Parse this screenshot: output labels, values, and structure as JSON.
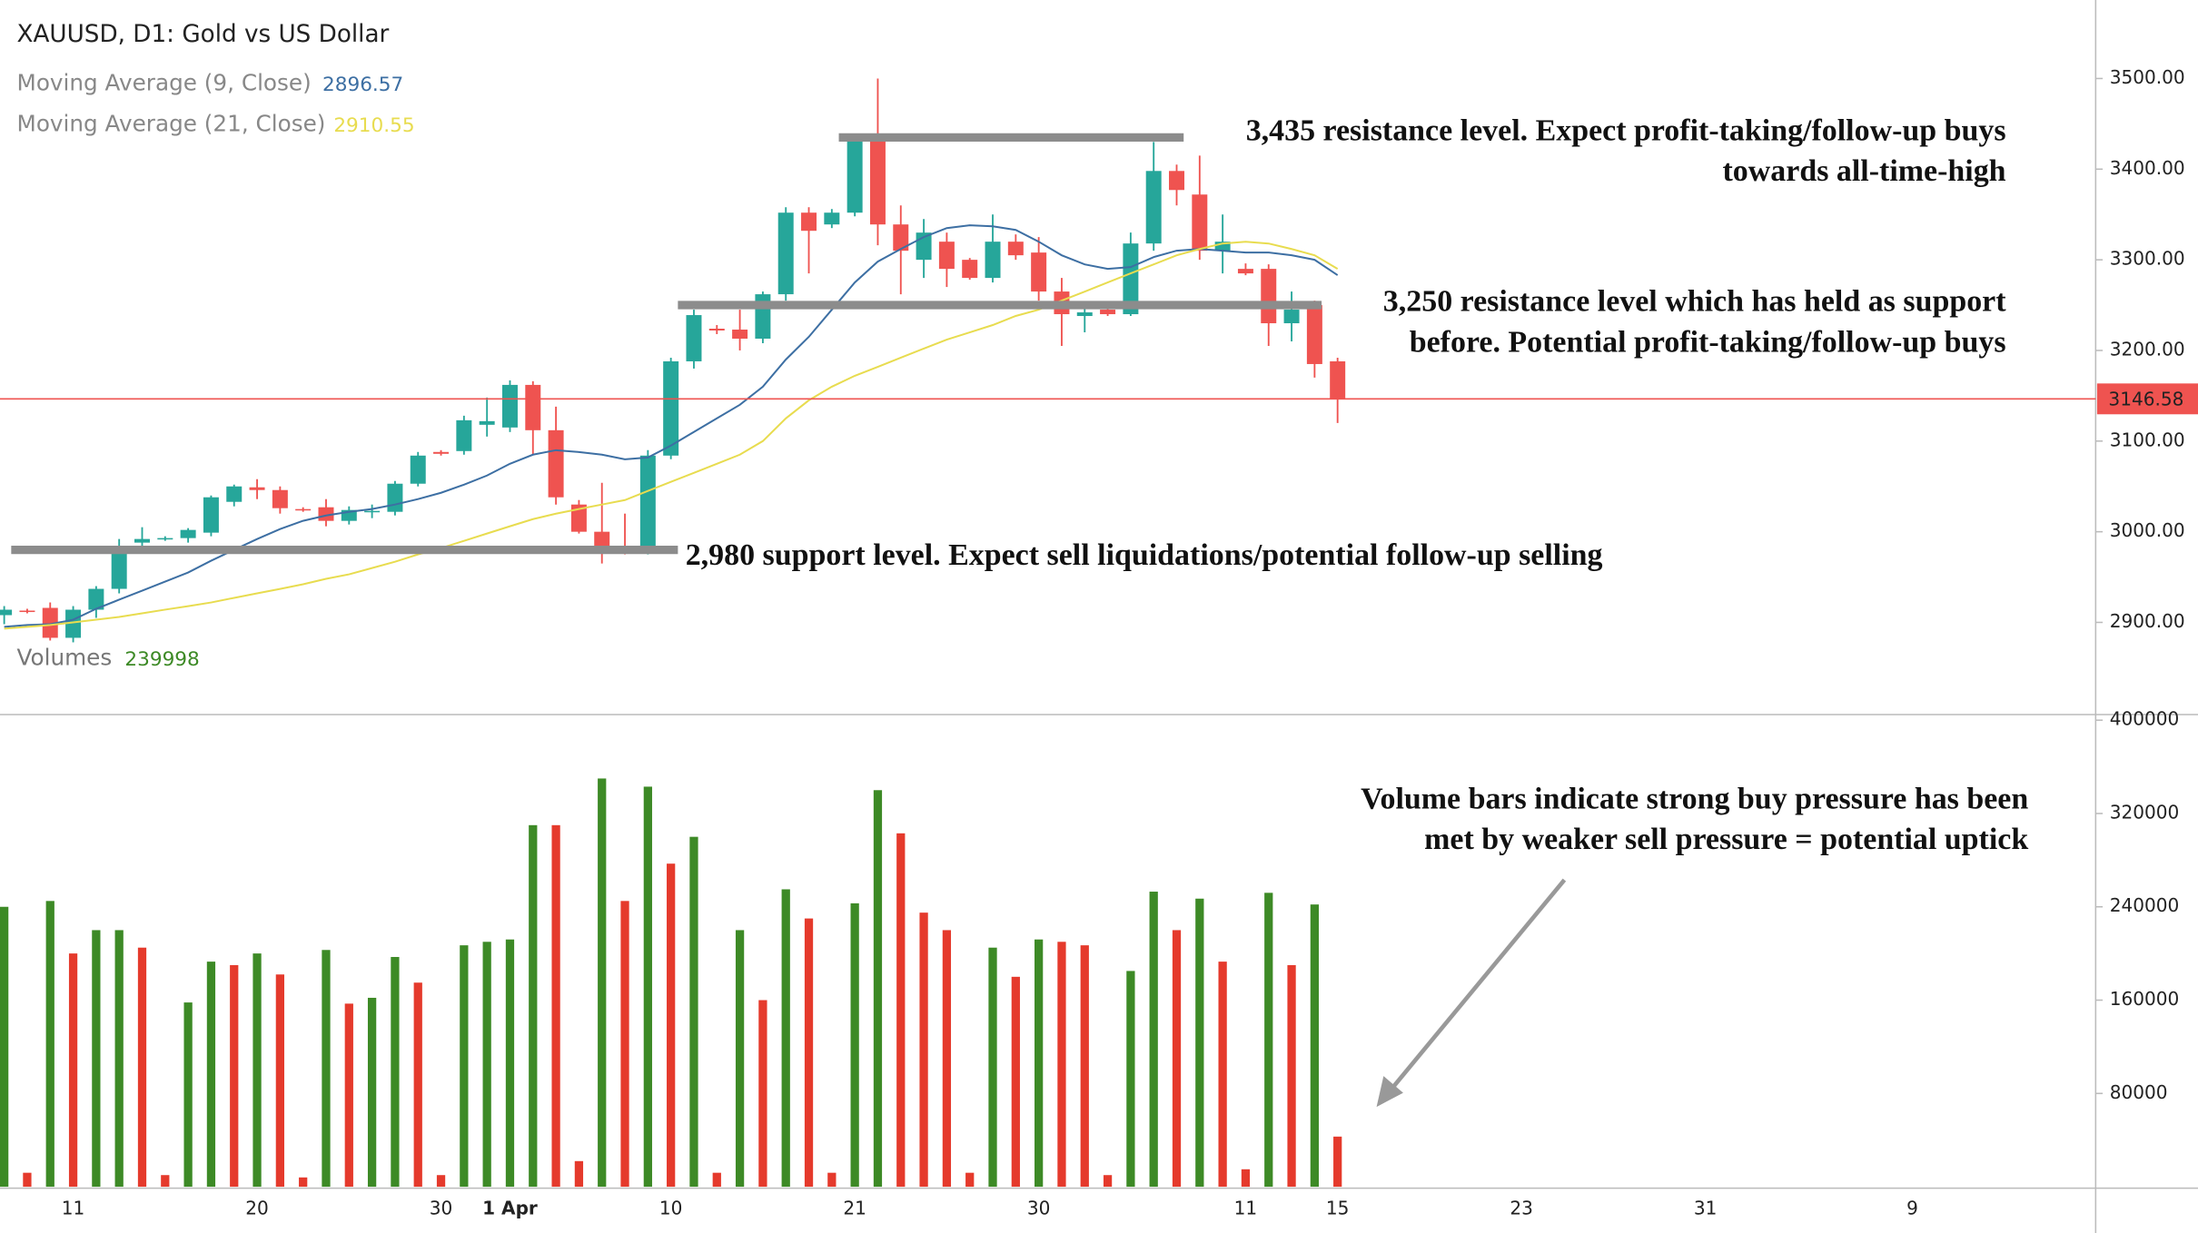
{
  "chart_data": {
    "type": "candlestick",
    "title": "XAUUSD, D1: Gold vs US Dollar",
    "categories": [
      null,
      null,
      null,
      "11",
      null,
      null,
      null,
      null,
      null,
      null,
      null,
      "20",
      null,
      null,
      null,
      null,
      null,
      null,
      null,
      "30",
      null,
      null,
      "1 Apr",
      null,
      null,
      null,
      null,
      null,
      null,
      "10",
      null,
      null,
      null,
      null,
      null,
      null,
      null,
      "21",
      null,
      null,
      null,
      null,
      null,
      null,
      null,
      "30",
      null,
      null,
      null,
      null,
      null,
      null,
      null,
      null,
      "11",
      null,
      null,
      null,
      "15",
      null,
      null,
      null,
      null,
      null,
      null,
      null,
      "23",
      null,
      null,
      null,
      null,
      null,
      null,
      null,
      "31",
      null,
      null,
      null,
      null,
      null,
      null,
      null,
      null,
      "9",
      null,
      null,
      null,
      null,
      null,
      null,
      null
    ],
    "open": [
      2908,
      2913,
      2916,
      2883,
      2914,
      2937,
      2988,
      2992,
      2993,
      2999,
      3033,
      3049,
      3046,
      3025,
      3027,
      3012,
      3022,
      3022,
      3053,
      3088,
      3089,
      3118,
      3115,
      3162,
      3112,
      3030,
      3000,
      2984,
      2979,
      3084,
      3188,
      3224,
      3223,
      3213,
      3262,
      3352,
      3339,
      3352,
      3432,
      3339,
      3300,
      3320,
      3300,
      3280,
      3320,
      3308,
      3265,
      3238,
      3245,
      3240,
      3318,
      3398,
      3372,
      3310,
      3290,
      3290,
      3230,
      3250,
      3188,
      null,
      null,
      null,
      null,
      null,
      null,
      null,
      null,
      null,
      null,
      null,
      null,
      null,
      null,
      null,
      null,
      null,
      null,
      null,
      null,
      null,
      null,
      null,
      null,
      null,
      null,
      null,
      null,
      null,
      null,
      null,
      null
    ],
    "high": [
      2918,
      2915,
      2922,
      2918,
      2940,
      2992,
      3005,
      2995,
      3004,
      3040,
      3052,
      3058,
      3050,
      3027,
      3036,
      3028,
      3030,
      3056,
      3088,
      3090,
      3128,
      3148,
      3167,
      3166,
      3138,
      3035,
      3054,
      3020,
      3090,
      3192,
      3245,
      3228,
      3245,
      3265,
      3358,
      3358,
      3356,
      3438,
      3500,
      3360,
      3345,
      3330,
      3302,
      3350,
      3328,
      3325,
      3280,
      3250,
      3248,
      3330,
      3430,
      3405,
      3415,
      3350,
      3296,
      3295,
      3265,
      3255,
      3192,
      null,
      null,
      null,
      null,
      null,
      null,
      null,
      null,
      null,
      null,
      null,
      null,
      null,
      null,
      null,
      null,
      null,
      null,
      null,
      null,
      null,
      null,
      null,
      null,
      null,
      null,
      null,
      null,
      null,
      null,
      null,
      null
    ],
    "low": [
      2898,
      2910,
      2880,
      2878,
      2905,
      2932,
      2982,
      2990,
      2988,
      2995,
      3028,
      3036,
      3020,
      3022,
      3006,
      3008,
      3015,
      3018,
      3050,
      3084,
      3085,
      3105,
      3110,
      3085,
      3030,
      2998,
      2965,
      2975,
      2975,
      3080,
      3180,
      3218,
      3200,
      3208,
      3255,
      3285,
      3335,
      3348,
      3316,
      3262,
      3280,
      3270,
      3278,
      3275,
      3300,
      3255,
      3205,
      3220,
      3238,
      3238,
      3310,
      3360,
      3300,
      3285,
      3283,
      3205,
      3210,
      3170,
      3120,
      null,
      null,
      null,
      null,
      null,
      null,
      null,
      null,
      null,
      null,
      null,
      null,
      null,
      null,
      null,
      null,
      null,
      null,
      null,
      null,
      null,
      null,
      null,
      null,
      null,
      null,
      null,
      null,
      null,
      null,
      null,
      null
    ],
    "close": [
      2914,
      2912,
      2883,
      2914,
      2937,
      2984,
      2992,
      2993,
      3002,
      3038,
      3050,
      3046,
      3026,
      3024,
      3012,
      3024,
      3023,
      3053,
      3084,
      3086,
      3123,
      3122,
      3162,
      3112,
      3038,
      3000,
      2981,
      2980,
      3084,
      3188,
      3239,
      3222,
      3213,
      3262,
      3352,
      3332,
      3352,
      3432,
      3339,
      3310,
      3330,
      3290,
      3280,
      3320,
      3305,
      3265,
      3240,
      3242,
      3240,
      3318,
      3398,
      3377,
      3310,
      3320,
      3285,
      3230,
      3245,
      3185,
      3146.58,
      null,
      null,
      null,
      null,
      null,
      null,
      null,
      null,
      null,
      null,
      null,
      null,
      null,
      null,
      null,
      null,
      null,
      null,
      null,
      null,
      null,
      null,
      null,
      null,
      null,
      null,
      null,
      null,
      null,
      null,
      null,
      null
    ],
    "up_color": "#26a69a",
    "down_color": "#ef5350",
    "ylim": [
      2798.3,
      3586.6
    ],
    "yticks": [
      {
        "value": 2900,
        "label": "2900.00"
      },
      {
        "value": 3000,
        "label": "3000.00"
      },
      {
        "value": 3100,
        "label": "3100.00"
      },
      {
        "value": 3200,
        "label": "3200.00"
      },
      {
        "value": 3300,
        "label": "3300.00"
      },
      {
        "value": 3400,
        "label": "3400.00"
      },
      {
        "value": 3500,
        "label": "3500.00"
      }
    ],
    "current_price": 3146.58,
    "current_price_color": "#ef5350",
    "series": [
      {
        "type": "line",
        "name": "Moving Average (9, Close)",
        "legend_value": 2896.57,
        "color": "#3d6fa3",
        "values": [
          2895,
          2897,
          2898,
          2903,
          2915,
          2925,
          2935,
          2945,
          2955,
          2968,
          2980,
          2992,
          3003,
          3012,
          3018,
          3022,
          3025,
          3030,
          3036,
          3043,
          3052,
          3062,
          3075,
          3085,
          3090,
          3088,
          3085,
          3080,
          3082,
          3095,
          3110,
          3125,
          3140,
          3160,
          3190,
          3215,
          3245,
          3275,
          3298,
          3312,
          3325,
          3335,
          3338,
          3337,
          3333,
          3320,
          3305,
          3295,
          3290,
          3292,
          3303,
          3310,
          3312,
          3310,
          3308,
          3308,
          3305,
          3300,
          3283,
          null,
          null,
          null,
          null,
          null,
          null,
          null,
          null,
          null,
          null,
          null,
          null,
          null,
          null,
          null,
          null,
          null,
          null,
          null,
          null,
          null,
          null,
          null,
          null,
          null,
          null,
          null,
          null,
          null,
          null,
          null,
          null
        ]
      },
      {
        "type": "line",
        "name": "Moving Average (21, Close)",
        "legend_value": 2910.55,
        "color": "#e8dc4f",
        "values": [
          2893,
          2895,
          2897,
          2900,
          2903,
          2906,
          2910,
          2914,
          2918,
          2922,
          2927,
          2932,
          2937,
          2942,
          2948,
          2953,
          2960,
          2967,
          2975,
          2982,
          2990,
          2998,
          3006,
          3014,
          3020,
          3025,
          3030,
          3035,
          3045,
          3055,
          3065,
          3075,
          3085,
          3100,
          3125,
          3145,
          3160,
          3172,
          3182,
          3192,
          3202,
          3212,
          3220,
          3228,
          3238,
          3245,
          3255,
          3265,
          3275,
          3285,
          3295,
          3305,
          3312,
          3318,
          3320,
          3318,
          3312,
          3305,
          3290,
          null,
          null,
          null,
          null,
          null,
          null,
          null,
          null,
          null,
          null,
          null,
          null,
          null,
          null,
          null,
          null,
          null,
          null,
          null,
          null,
          null,
          null,
          null,
          null,
          null,
          null,
          null,
          null,
          null,
          null,
          null,
          null
        ]
      }
    ],
    "levels": [
      {
        "value": 3435,
        "start": 36,
        "end": 51,
        "text": [
          "3,435 resistance level. Expect profit-taking/follow-up buys",
          "towards all-time-high"
        ]
      },
      {
        "value": 3250,
        "start": 29,
        "end": 57,
        "text": [
          "3,250 resistance level which has held as support",
          "before. Potential profit-taking/follow-up buys"
        ]
      },
      {
        "value": 2980,
        "start": 0,
        "end": 29,
        "text": [
          "2,980 support level. Expect sell liquidations/potential follow-up selling"
        ]
      }
    ],
    "volume": {
      "type": "bar",
      "name": "Volumes",
      "legend_value": 239998,
      "legend_color": "#3d8a26",
      "values": [
        240000,
        12000,
        245000,
        200000,
        220000,
        220000,
        205000,
        10000,
        158000,
        193000,
        190000,
        200000,
        182000,
        8000,
        203000,
        157000,
        162000,
        197000,
        175000,
        10000,
        207000,
        210000,
        212000,
        310000,
        310000,
        22000,
        350000,
        245000,
        343000,
        277000,
        300000,
        12000,
        220000,
        160000,
        255000,
        230000,
        12000,
        243000,
        340000,
        303000,
        235000,
        220000,
        12000,
        205000,
        180000,
        212000,
        210000,
        207000,
        10000,
        185000,
        253000,
        220000,
        247000,
        193000,
        15000,
        252000,
        190000,
        242000,
        43000,
        null,
        null,
        null,
        null,
        null,
        null,
        null,
        null,
        null,
        null,
        null,
        null,
        null,
        null,
        null,
        null,
        null,
        null,
        null,
        null,
        null,
        null,
        null,
        null,
        null,
        null,
        null,
        null,
        null,
        null,
        null,
        null
      ],
      "colors": [
        "#3d8a26",
        "#e53a2c",
        "#3d8a26",
        "#e53a2c",
        "#3d8a26",
        "#3d8a26",
        "#e53a2c",
        "#e53a2c",
        "#3d8a26",
        "#3d8a26",
        "#e53a2c",
        "#3d8a26",
        "#e53a2c",
        "#e53a2c",
        "#3d8a26",
        "#e53a2c",
        "#3d8a26",
        "#3d8a26",
        "#e53a2c",
        "#e53a2c",
        "#3d8a26",
        "#3d8a26",
        "#3d8a26",
        "#3d8a26",
        "#e53a2c",
        "#e53a2c",
        "#3d8a26",
        "#e53a2c",
        "#3d8a26",
        "#e53a2c",
        "#3d8a26",
        "#e53a2c",
        "#3d8a26",
        "#e53a2c",
        "#3d8a26",
        "#e53a2c",
        "#e53a2c",
        "#3d8a26",
        "#3d8a26",
        "#e53a2c",
        "#e53a2c",
        "#e53a2c",
        "#e53a2c",
        "#3d8a26",
        "#e53a2c",
        "#3d8a26",
        "#e53a2c",
        "#e53a2c",
        "#e53a2c",
        "#3d8a26",
        "#3d8a26",
        "#e53a2c",
        "#3d8a26",
        "#e53a2c",
        "#e53a2c",
        "#3d8a26",
        "#e53a2c",
        "#3d8a26",
        "#e53a2c",
        null,
        null,
        null,
        null,
        null,
        null,
        null,
        null,
        null,
        null,
        null,
        null,
        null,
        null,
        null,
        null,
        null,
        null,
        null,
        null,
        null,
        null,
        null,
        null,
        null,
        null,
        null,
        null,
        null,
        null,
        null,
        null
      ],
      "ylim": [
        0,
        404800
      ],
      "yticks": [
        80000,
        160000,
        240000,
        320000,
        400000
      ],
      "annotation": [
        "Volume bars indicate strong buy pressure has been",
        "met by weaker sell pressure = potential uptick"
      ]
    }
  }
}
